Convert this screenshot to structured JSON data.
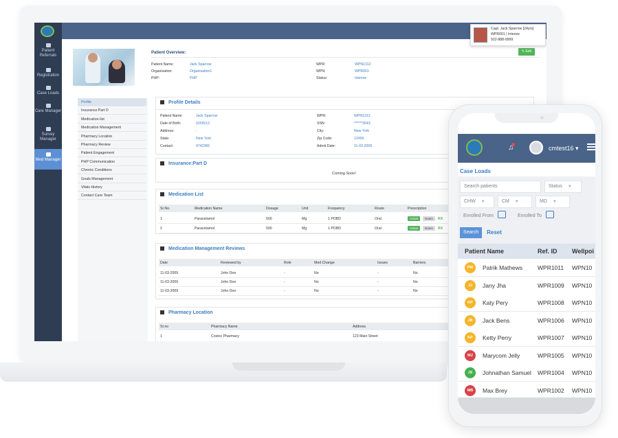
{
  "desktop": {
    "sidebar": [
      {
        "label": "Patient Referrals"
      },
      {
        "label": "Registration"
      },
      {
        "label": "Case Loads"
      },
      {
        "label": "Care Manager"
      },
      {
        "label": "Survey Manager"
      },
      {
        "label": "Med Manager",
        "active": true
      }
    ],
    "user_card": {
      "line1": "Capt. Jack Sparrow [24yrs]",
      "line2": "WPR001 | Intense",
      "line3": "922-888-9999"
    },
    "overview": {
      "title": "Patient Overview:",
      "edit_label": "✎ Edit",
      "left": [
        {
          "k": "Patient Name:",
          "v": "Jack Sparrow"
        },
        {
          "k": "Organisation:",
          "v": "Organisation1"
        },
        {
          "k": "PHP:",
          "v": "PHP"
        }
      ],
      "right": [
        {
          "k": "WPR:",
          "v": "WPN1312"
        },
        {
          "k": "WPN:",
          "v": "WPR001"
        },
        {
          "k": "Status:",
          "v": "Intense"
        }
      ]
    },
    "leftnav": [
      "Profile",
      "Insurance:Part D",
      "Medication-list",
      "Medication Management",
      "Pharmacy Location",
      "Pharmacy Review",
      "Patient Engagement",
      "PHP Communication",
      "Chronic Conditions",
      "Goals Management",
      "Vitals History",
      "Contact Care Team"
    ],
    "profile": {
      "title": "Profile Details",
      "left": [
        {
          "k": "Patient Name:",
          "v": "Jack Sparrow"
        },
        {
          "k": "Date of Birth:",
          "v": "02/05/12"
        },
        {
          "k": "Address:",
          "v": "-"
        },
        {
          "k": "State:",
          "v": "New York"
        },
        {
          "k": "Contact:",
          "v": "9742365"
        }
      ],
      "right": [
        {
          "k": "WPR:",
          "v": "WPN1312"
        },
        {
          "k": "SSN:",
          "v": "******3543"
        },
        {
          "k": "City:",
          "v": "New York"
        },
        {
          "k": "Zip Code:",
          "v": "12456"
        },
        {
          "k": "Admit Date:",
          "v": "11-03-2009"
        }
      ]
    },
    "insurance": {
      "title": "Insurance:Part D",
      "message": "Coming Soon!"
    },
    "medication": {
      "title": "Medication List",
      "headers": [
        "Sr.No.",
        "Medication Name",
        "Dosage",
        "Unit",
        "Frequency",
        "Route",
        "Prescription"
      ],
      "rows": [
        [
          "1",
          "Paracetamol",
          "500",
          "Mg",
          "1 POBD",
          "Oral"
        ],
        [
          "2",
          "Paracetamol",
          "500",
          "Mg",
          "1 POBD",
          "Oral"
        ]
      ],
      "active_label": "Active",
      "notes_label": "Notes",
      "rx_label": "RX"
    },
    "reviews": {
      "title": "Medication Management Reviews",
      "headers": [
        "Date",
        "Reviewed by",
        "Role",
        "Med Change",
        "Issues",
        "Barriers"
      ],
      "rows": [
        [
          "11-03-2009",
          "John Doe",
          "-",
          "No",
          "-",
          "No"
        ],
        [
          "11-03-2009",
          "John Doe",
          "-",
          "No",
          "-",
          "No"
        ],
        [
          "11-03-2009",
          "John Doe",
          "-",
          "No",
          "-",
          "No"
        ]
      ]
    },
    "pharmacy": {
      "title": "Pharmacy Location",
      "headers": [
        "Sr.no",
        "Pharmacy Name",
        "Address"
      ],
      "rows": [
        [
          "1",
          "Costco Pharmacy",
          "123 Main Street"
        ]
      ]
    }
  },
  "mobile": {
    "username": "cmtest16",
    "title": "Case Loads",
    "search_placeholder": "Search patients",
    "status_label": "Status",
    "chw_label": "CHW",
    "cm_label": "CM",
    "md_label": "MD",
    "enrolled_from": "Enrolled From",
    "enrolled_to": "Enrolled To",
    "search_btn": "Search",
    "reset_btn": "Reset",
    "headers": [
      "Patient Name",
      "Ref. ID",
      "Wellpoi"
    ],
    "rows": [
      {
        "initials": "PM",
        "name": "Patrik Mathews",
        "ref": "WPR1011",
        "wpn": "WPN10",
        "color": "#f5b52a"
      },
      {
        "initials": "JJ",
        "name": "Jany Jha",
        "ref": "WPR1009",
        "wpn": "WPN10",
        "color": "#f5b52a"
      },
      {
        "initials": "KP",
        "name": "Katy Pery",
        "ref": "WPR1008",
        "wpn": "WPN10",
        "color": "#f5b52a"
      },
      {
        "initials": "JB",
        "name": "Jack Bens",
        "ref": "WPR1006",
        "wpn": "WPN10",
        "color": "#f5b52a"
      },
      {
        "initials": "KP",
        "name": "Ketty Perry",
        "ref": "WPR1007",
        "wpn": "WPN10",
        "color": "#f5b52a"
      },
      {
        "initials": "MJ",
        "name": "Marycom Jelly",
        "ref": "WPR1005",
        "wpn": "WPN10",
        "color": "#d9434b"
      },
      {
        "initials": "JS",
        "name": "Johnathan Samuel",
        "ref": "WPR1004",
        "wpn": "WPN10",
        "color": "#45b04f"
      },
      {
        "initials": "MB",
        "name": "Max Brey",
        "ref": "WPR1002",
        "wpn": "WPN10",
        "color": "#d9434b"
      }
    ]
  }
}
